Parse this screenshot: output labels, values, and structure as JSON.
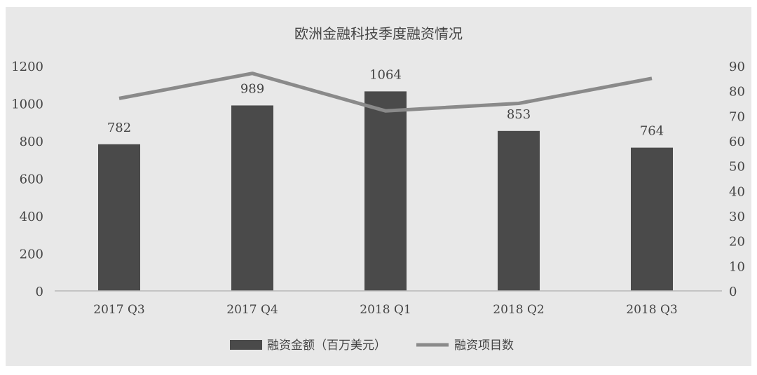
{
  "chart_data": {
    "type": "bar",
    "title": "欧洲金融科技季度融资情况",
    "categories": [
      "2017 Q3",
      "2017 Q4",
      "2018 Q1",
      "2018 Q2",
      "2018 Q3"
    ],
    "series": [
      {
        "name": "融资金额（百万美元）",
        "type": "bar",
        "axis": "left",
        "values": [
          782,
          989,
          1064,
          853,
          764
        ]
      },
      {
        "name": "融资项目数",
        "type": "line",
        "axis": "right",
        "values": [
          77,
          87,
          72,
          75,
          85
        ]
      }
    ],
    "y_left": {
      "min": 0,
      "max": 1200,
      "ticks": [
        "0",
        "200",
        "400",
        "600",
        "800",
        "1000",
        "1200"
      ]
    },
    "y_right": {
      "min": 0,
      "max": 90,
      "ticks": [
        "0",
        "10",
        "20",
        "30",
        "40",
        "50",
        "60",
        "70",
        "80",
        "90"
      ]
    },
    "bar_labels": [
      "782",
      "989",
      "1064",
      "853",
      "764"
    ],
    "legend_position": "bottom",
    "grid": false,
    "colors": {
      "bar": "#4a4a4a",
      "line": "#8a8a8a",
      "panel": "#e8e8e8",
      "text": "#444444",
      "axis": "#b8b8b8"
    }
  }
}
